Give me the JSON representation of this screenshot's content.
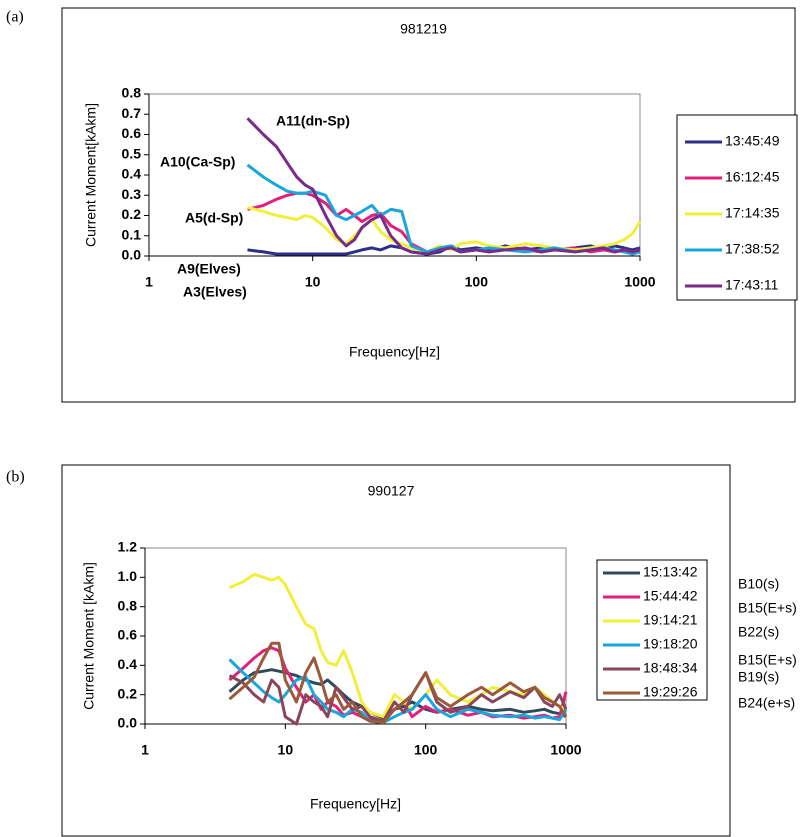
{
  "chart_data": [
    {
      "type": "line",
      "panel_label": "(a)",
      "title": "981219",
      "xlabel": "Frequency[Hz]",
      "ylabel": "Current Moment[kAkm]",
      "xscale": "log",
      "xlim": [
        1,
        1000
      ],
      "xticks": [
        1,
        10,
        100,
        1000
      ],
      "ylim": [
        0,
        0.8
      ],
      "yticks": [
        {
          "value": 0,
          "label": "0.0"
        },
        0.1,
        0.2,
        0.3,
        0.4,
        0.5,
        0.6,
        0.7,
        0.8
      ],
      "legend": "right",
      "annotations": [
        "A11(dn-Sp)",
        "A10(Ca-Sp)",
        "A5(d-Sp)",
        "A9(Elves)",
        "A3(Elves)"
      ],
      "x": [
        4,
        5,
        6,
        7,
        8,
        9,
        10,
        12,
        14,
        16,
        18,
        20,
        23,
        26,
        30,
        35,
        40,
        50,
        60,
        70,
        80,
        100,
        120,
        150,
        200,
        250,
        300,
        400,
        500,
        600,
        700,
        800,
        900,
        1000
      ],
      "series": [
        {
          "name": "13:45:49",
          "color": "#2a2f8a",
          "values": [
            0.03,
            0.02,
            0.01,
            0.01,
            0.01,
            0.01,
            0.01,
            0.01,
            0.01,
            0.01,
            0.02,
            0.03,
            0.04,
            0.03,
            0.05,
            0.04,
            0.02,
            0.01,
            0.02,
            0.05,
            0.03,
            0.04,
            0.03,
            0.05,
            0.03,
            0.04,
            0.03,
            0.04,
            0.05,
            0.03,
            0.05,
            0.04,
            0.03,
            0.04
          ]
        },
        {
          "name": "16:12:45",
          "color": "#e0207a",
          "values": [
            0.23,
            0.25,
            0.28,
            0.3,
            0.31,
            0.31,
            0.3,
            0.26,
            0.2,
            0.23,
            0.2,
            0.17,
            0.2,
            0.21,
            0.15,
            0.12,
            0.06,
            0.02,
            0.03,
            0.04,
            0.02,
            0.03,
            0.02,
            0.04,
            0.03,
            0.02,
            0.03,
            0.04,
            0.02,
            0.03,
            0.02,
            0.03,
            0.02,
            0.03
          ]
        },
        {
          "name": "17:14:35",
          "color": "#f2ef3a",
          "values": [
            0.24,
            0.22,
            0.2,
            0.19,
            0.18,
            0.2,
            0.19,
            0.14,
            0.08,
            0.06,
            0.1,
            0.14,
            0.18,
            0.12,
            0.08,
            0.06,
            0.04,
            0.02,
            0.05,
            0.03,
            0.06,
            0.07,
            0.05,
            0.04,
            0.06,
            0.05,
            0.04,
            0.03,
            0.04,
            0.05,
            0.06,
            0.08,
            0.11,
            0.17
          ]
        },
        {
          "name": "17:38:52",
          "color": "#1aa6dd",
          "values": [
            0.45,
            0.39,
            0.35,
            0.32,
            0.31,
            0.31,
            0.32,
            0.3,
            0.2,
            0.18,
            0.2,
            0.22,
            0.25,
            0.2,
            0.23,
            0.22,
            0.05,
            0.02,
            0.04,
            0.05,
            0.02,
            0.03,
            0.04,
            0.03,
            0.02,
            0.03,
            0.04,
            0.02,
            0.03,
            0.04,
            0.03,
            0.02,
            0.01,
            0.02
          ]
        },
        {
          "name": "17:43:11",
          "color": "#7a2a8a",
          "values": [
            0.68,
            0.6,
            0.54,
            0.46,
            0.39,
            0.35,
            0.33,
            0.2,
            0.1,
            0.05,
            0.08,
            0.14,
            0.18,
            0.2,
            0.1,
            0.04,
            0.02,
            0.01,
            0.03,
            0.04,
            0.02,
            0.03,
            0.02,
            0.03,
            0.04,
            0.02,
            0.03,
            0.02,
            0.03,
            0.04,
            0.02,
            0.03,
            0.02,
            0.03
          ]
        }
      ]
    },
    {
      "type": "line",
      "panel_label": "(b)",
      "title": "990127",
      "xlabel": "Frequency[Hz]",
      "ylabel": "Current Moment [kAkm]",
      "xscale": "log",
      "xlim": [
        1,
        1000
      ],
      "xticks": [
        1,
        10,
        100,
        1000
      ],
      "ylim": [
        0,
        1.2
      ],
      "yticks": [
        {
          "value": 0,
          "label": "0.0"
        },
        0.2,
        0.4,
        0.6,
        0.8,
        {
          "value": 1,
          "label": "1.0"
        },
        1.2
      ],
      "legend": "right",
      "side_labels": [
        "B10(s)",
        "B15(E+s)",
        "B22(s)",
        "B15(E+s)",
        "B19(s)",
        "B24(e+s)"
      ],
      "x": [
        4,
        5,
        6,
        7,
        8,
        9,
        10,
        12,
        14,
        16,
        18,
        20,
        23,
        26,
        30,
        35,
        40,
        50,
        60,
        70,
        80,
        100,
        120,
        150,
        200,
        250,
        300,
        400,
        500,
        600,
        700,
        800,
        900,
        1000
      ],
      "series": [
        {
          "name": "15:13:42",
          "color": "#2f4a5c",
          "values": [
            0.22,
            0.3,
            0.35,
            0.36,
            0.37,
            0.36,
            0.35,
            0.33,
            0.3,
            0.28,
            0.27,
            0.3,
            0.25,
            0.2,
            0.15,
            0.12,
            0.08,
            0.04,
            0.1,
            0.12,
            0.15,
            0.1,
            0.08,
            0.1,
            0.12,
            0.1,
            0.09,
            0.1,
            0.08,
            0.09,
            0.1,
            0.08,
            0.07,
            0.05
          ]
        },
        {
          "name": "15:44:42",
          "color": "#e0207a",
          "values": [
            0.3,
            0.38,
            0.45,
            0.5,
            0.52,
            0.5,
            0.38,
            0.25,
            0.15,
            0.2,
            0.1,
            0.15,
            0.12,
            0.06,
            0.08,
            0.05,
            0.03,
            0.02,
            0.1,
            0.15,
            0.05,
            0.12,
            0.08,
            0.1,
            0.06,
            0.08,
            0.05,
            0.06,
            0.04,
            0.05,
            0.06,
            0.04,
            0.05,
            0.22
          ]
        },
        {
          "name": "19:14:21",
          "color": "#f2ef3a",
          "values": [
            0.93,
            0.97,
            1.02,
            1.0,
            0.98,
            1.0,
            0.95,
            0.8,
            0.68,
            0.65,
            0.5,
            0.42,
            0.4,
            0.5,
            0.35,
            0.15,
            0.08,
            0.05,
            0.2,
            0.15,
            0.1,
            0.2,
            0.3,
            0.2,
            0.15,
            0.2,
            0.25,
            0.22,
            0.2,
            0.25,
            0.2,
            0.15,
            0.12,
            0.1
          ]
        },
        {
          "name": "19:18:20",
          "color": "#1aa6dd",
          "values": [
            0.44,
            0.35,
            0.28,
            0.22,
            0.18,
            0.15,
            0.2,
            0.3,
            0.32,
            0.2,
            0.15,
            0.1,
            0.08,
            0.05,
            0.1,
            0.08,
            0.02,
            0.01,
            0.05,
            0.08,
            0.1,
            0.2,
            0.1,
            0.05,
            0.1,
            0.08,
            0.06,
            0.05,
            0.06,
            0.04,
            0.05,
            0.04,
            0.03,
            0.1
          ]
        },
        {
          "name": "18:48:34",
          "color": "#8a4658",
          "values": [
            0.33,
            0.28,
            0.2,
            0.15,
            0.3,
            0.25,
            0.05,
            0.0,
            0.2,
            0.15,
            0.12,
            0.05,
            0.25,
            0.18,
            0.1,
            0.12,
            0.05,
            0.02,
            0.15,
            0.08,
            0.2,
            0.35,
            0.15,
            0.08,
            0.12,
            0.2,
            0.15,
            0.22,
            0.18,
            0.25,
            0.15,
            0.12,
            0.2,
            0.1
          ]
        },
        {
          "name": "19:29:26",
          "color": "#9a5a3a",
          "values": [
            0.17,
            0.25,
            0.32,
            0.45,
            0.55,
            0.55,
            0.3,
            0.15,
            0.35,
            0.45,
            0.3,
            0.15,
            0.2,
            0.1,
            0.15,
            0.05,
            0.02,
            0.01,
            0.1,
            0.15,
            0.2,
            0.35,
            0.18,
            0.12,
            0.2,
            0.25,
            0.2,
            0.28,
            0.22,
            0.25,
            0.18,
            0.15,
            0.12,
            0.05
          ]
        }
      ]
    }
  ]
}
